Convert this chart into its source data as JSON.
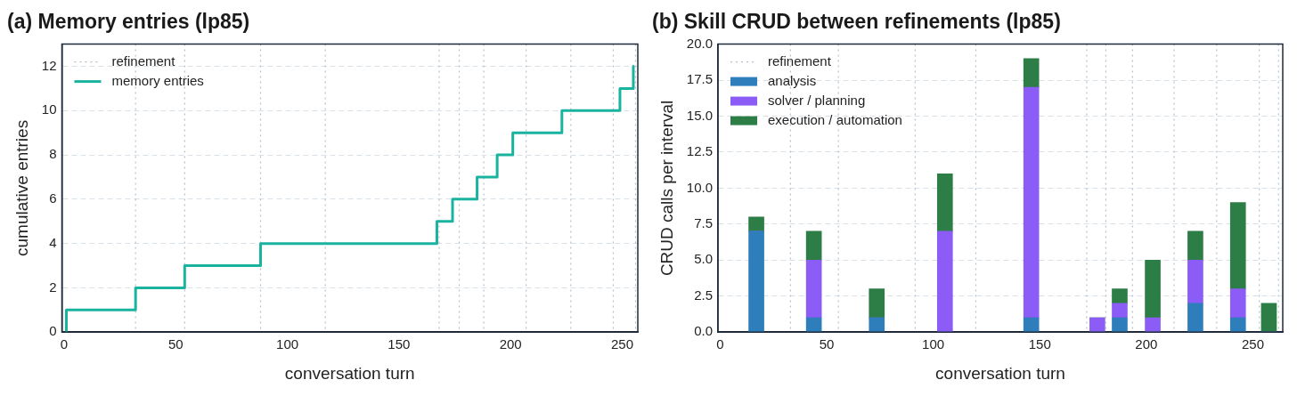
{
  "chart_data": [
    {
      "type": "step",
      "title": "(a) Memory entries (lp85)",
      "xlabel": "conversation turn",
      "ylabel": "cumulative entries",
      "x": [
        1,
        1,
        32,
        54,
        88,
        167,
        174,
        185,
        194,
        201,
        223,
        249,
        255
      ],
      "series": [
        {
          "name": "memory entries",
          "color": "#1ab3a0",
          "values": [
            0,
            1,
            2,
            3,
            4,
            5,
            6,
            7,
            8,
            9,
            10,
            11,
            12
          ]
        }
      ],
      "xlim": [
        -1,
        257
      ],
      "xticks": [
        0,
        50,
        100,
        150,
        200,
        250
      ],
      "ylim": [
        0,
        13
      ],
      "yticks": [
        0,
        2,
        4,
        6,
        8,
        10,
        12
      ],
      "ref_lines": [
        {
          "axis": "x",
          "value": 32,
          "label": "refinement",
          "color": "#b4c0cc",
          "line_style": "dotted"
        },
        {
          "axis": "x",
          "value": 54,
          "color": "#b4c0cc",
          "line_style": "dotted"
        },
        {
          "axis": "x",
          "value": 88,
          "color": "#b4c0cc",
          "line_style": "dotted"
        },
        {
          "axis": "x",
          "value": 117,
          "color": "#b4c0cc",
          "line_style": "dotted"
        },
        {
          "axis": "x",
          "value": 168,
          "color": "#b4c0cc",
          "line_style": "dotted"
        },
        {
          "axis": "x",
          "value": 177,
          "color": "#b4c0cc",
          "line_style": "dotted"
        },
        {
          "axis": "x",
          "value": 188,
          "color": "#b4c0cc",
          "line_style": "dotted"
        },
        {
          "axis": "x",
          "value": 207,
          "color": "#b4c0cc",
          "line_style": "dotted"
        },
        {
          "axis": "x",
          "value": 227,
          "color": "#b4c0cc",
          "line_style": "dotted"
        },
        {
          "axis": "x",
          "value": 246,
          "color": "#b4c0cc",
          "line_style": "dotted"
        },
        {
          "axis": "x",
          "value": 256,
          "color": "#b4c0cc",
          "line_style": "dotted"
        }
      ],
      "grid": "y",
      "legend": "top left",
      "line_style": "solid",
      "marker": "none"
    },
    {
      "type": "bar",
      "title": "(b) Skill CRUD between refinements (lp85)",
      "xlabel": "conversation turn",
      "ylabel": "CRUD calls per interval",
      "x": [
        17,
        44,
        73.5,
        105.5,
        146,
        177,
        187.5,
        203,
        223,
        243,
        257.5
      ],
      "stacked": true,
      "series": [
        {
          "name": "analysis",
          "color": "#2e7ebc",
          "values": [
            7,
            1,
            1,
            0,
            1,
            0,
            1,
            0,
            2,
            1,
            0
          ]
        },
        {
          "name": "solver / planning",
          "color": "#8b5cf6",
          "values": [
            0,
            4,
            0,
            7,
            16,
            1,
            1,
            1,
            3,
            2,
            0
          ]
        },
        {
          "name": "execution / automation",
          "color": "#2c7d46",
          "values": [
            1,
            2,
            2,
            4,
            2,
            0,
            1,
            4,
            2,
            6,
            2
          ]
        }
      ],
      "xlim": [
        -1,
        264
      ],
      "xticks": [
        0,
        50,
        100,
        150,
        200,
        250
      ],
      "ylim": [
        0,
        20
      ],
      "yticks": [
        {
          "value": 0,
          "label": "0.0"
        },
        {
          "value": 2.5,
          "label": "2.5"
        },
        {
          "value": 5,
          "label": "5.0"
        },
        {
          "value": 7.5,
          "label": "7.5"
        },
        {
          "value": 10,
          "label": "10.0"
        },
        {
          "value": 12.5,
          "label": "12.5"
        },
        {
          "value": 15,
          "label": "15.0"
        },
        {
          "value": 17.5,
          "label": "17.5"
        },
        {
          "value": 20,
          "label": "20.0"
        }
      ],
      "ref_lines": [
        {
          "axis": "x",
          "value": 33,
          "label": "refinement",
          "color": "#b4c0cc",
          "line_style": "dotted"
        },
        {
          "axis": "x",
          "value": 55.5,
          "color": "#b4c0cc",
          "line_style": "dotted"
        },
        {
          "axis": "x",
          "value": 91.5,
          "color": "#b4c0cc",
          "line_style": "dotted"
        },
        {
          "axis": "x",
          "value": 120,
          "color": "#b4c0cc",
          "line_style": "dotted"
        },
        {
          "axis": "x",
          "value": 172,
          "color": "#b4c0cc",
          "line_style": "dotted"
        },
        {
          "axis": "x",
          "value": 181,
          "color": "#b4c0cc",
          "line_style": "dotted"
        },
        {
          "axis": "x",
          "value": 193.5,
          "color": "#b4c0cc",
          "line_style": "dotted"
        },
        {
          "axis": "x",
          "value": 213,
          "color": "#b4c0cc",
          "line_style": "dotted"
        },
        {
          "axis": "x",
          "value": 233,
          "color": "#b4c0cc",
          "line_style": "dotted"
        },
        {
          "axis": "x",
          "value": 253,
          "color": "#b4c0cc",
          "line_style": "dotted"
        },
        {
          "axis": "x",
          "value": 262,
          "color": "#b4c0cc",
          "line_style": "dotted"
        }
      ],
      "grid": "y",
      "legend": "top left"
    }
  ]
}
